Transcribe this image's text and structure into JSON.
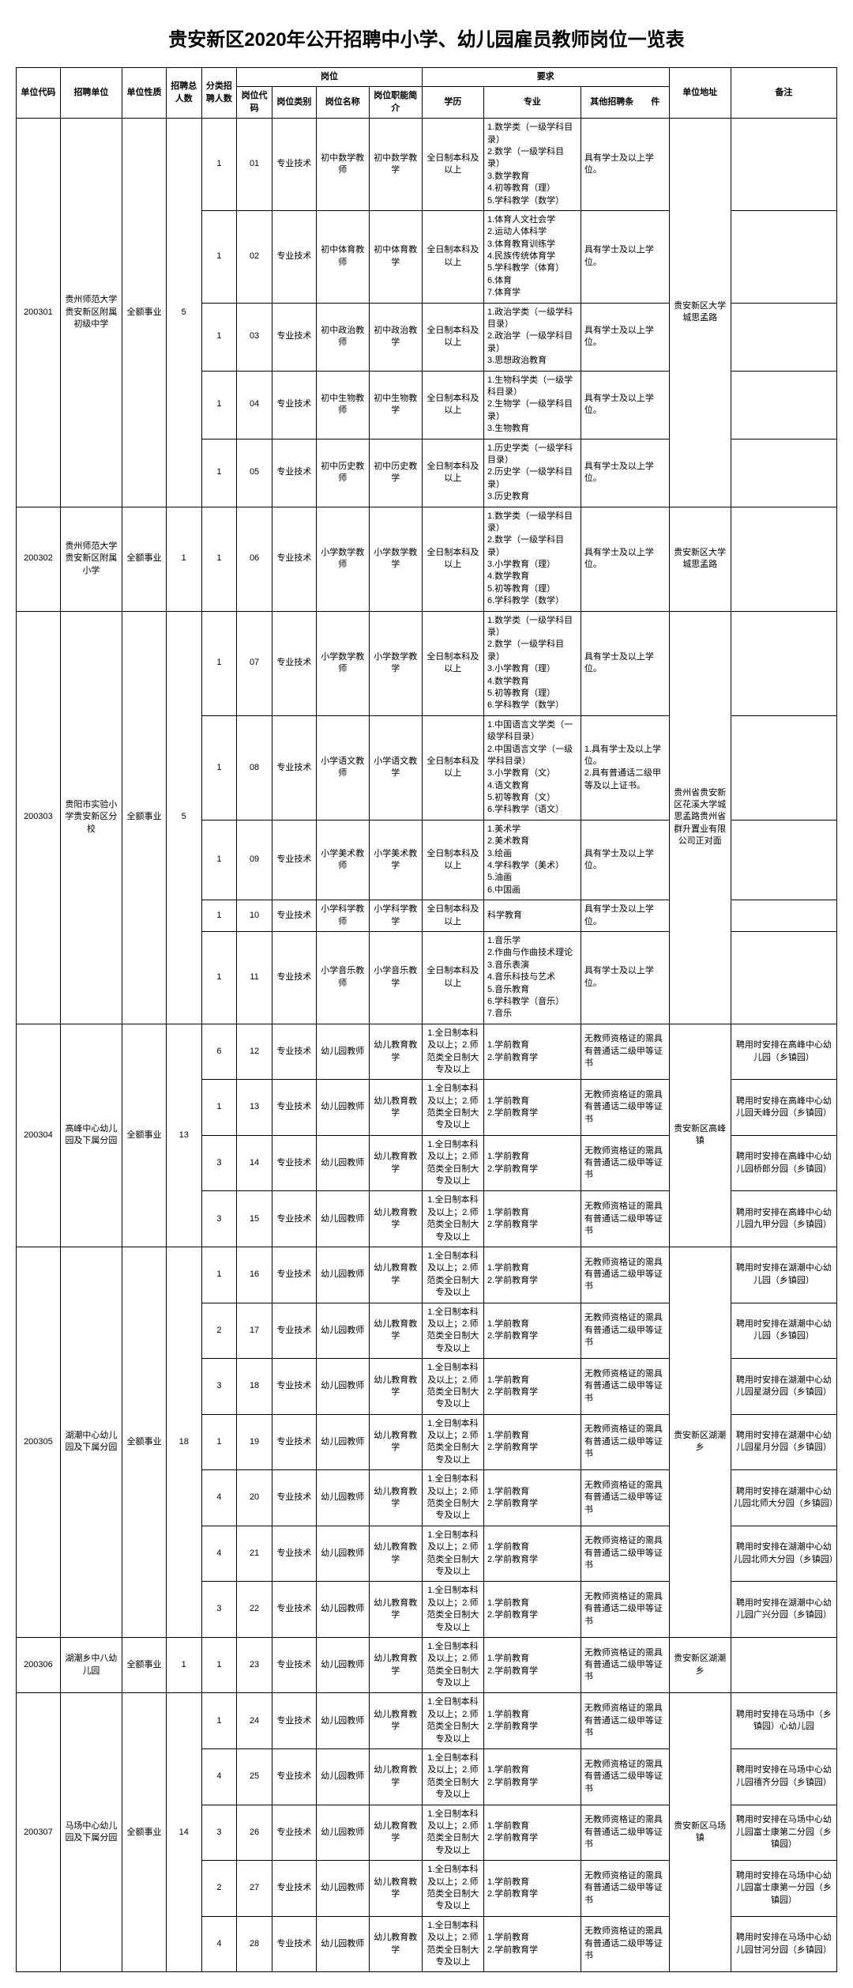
{
  "title": "贵安新区2020年公开招聘中小学、幼儿园雇员教师岗位一览表",
  "headers": {
    "unit_code": "单位代码",
    "unit": "招聘单位",
    "nature": "单位性质",
    "total": "招聘总人数",
    "subcount": "分类招聘人数",
    "position_group": "岗位",
    "pos_code": "岗位代码",
    "pos_type": "岗位类别",
    "pos_name": "岗位名称",
    "pos_desc": "岗位职能简介",
    "req_group": "要求",
    "edu": "学历",
    "major": "专业",
    "other": "其他招聘条　　件",
    "addr": "单位地址",
    "note": "备注"
  },
  "units": [
    {
      "code": "200301",
      "name": "贵州师范大学贵安新区附属初级中学",
      "nature": "全额事业",
      "total": "5",
      "addr": "贵安新区大学城思孟路",
      "rows": [
        {
          "n": "1",
          "pc": "01",
          "pt": "专业技术",
          "pn": "初中数学教师",
          "pd": "初中数学教学",
          "edu": "全日制本科及以上",
          "mj": "1.数学类（一级学科目录）\n2.数学（一级学科目录）\n3.数学教育\n4.初等教育（理）\n5.学科教学（数学）",
          "ot": "具有学士及以上学位。",
          "nt": ""
        },
        {
          "n": "1",
          "pc": "02",
          "pt": "专业技术",
          "pn": "初中体育教师",
          "pd": "初中体育教学",
          "edu": "全日制本科及以上",
          "mj": "1.体育人文社会学\n2.运动人体科学\n3.体育教育训练学\n4.民族传统体育学\n5.学科教学（体育）\n6.体育\n7.体育学",
          "ot": "具有学士及以上学位。",
          "nt": ""
        },
        {
          "n": "1",
          "pc": "03",
          "pt": "专业技术",
          "pn": "初中政治教师",
          "pd": "初中政治教学",
          "edu": "全日制本科及以上",
          "mj": "1.政治学类（一级学科目录）\n2.政治学（一级学科目录）\n3.思想政治教育",
          "ot": "具有学士及以上学位。",
          "nt": ""
        },
        {
          "n": "1",
          "pc": "04",
          "pt": "专业技术",
          "pn": "初中生物教师",
          "pd": "初中生物教学",
          "edu": "全日制本科及以上",
          "mj": "1.生物科学类（一级学科目录）\n2.生物学（一级学科目录）\n3.生物教育",
          "ot": "具有学士及以上学位。",
          "nt": ""
        },
        {
          "n": "1",
          "pc": "05",
          "pt": "专业技术",
          "pn": "初中历史教师",
          "pd": "初中历史教学",
          "edu": "全日制本科及以上",
          "mj": "1.历史学类（一级学科目录）\n2.历史学（一级学科目录）\n3.历史教育",
          "ot": "具有学士及以上学位。",
          "nt": ""
        }
      ]
    },
    {
      "code": "200302",
      "name": "贵州师范大学贵安新区附属小学",
      "nature": "全额事业",
      "total": "1",
      "addr": "贵安新区大学城思孟路",
      "rows": [
        {
          "n": "1",
          "pc": "06",
          "pt": "专业技术",
          "pn": "小学数学教师",
          "pd": "小学数学教学",
          "edu": "全日制本科及以上",
          "mj": "1.数学类（一级学科目录）\n2.数学（一级学科目录）\n3.小学教育（理）\n4.数学教育\n5.初等教育（理）\n6.学科教学（数学）",
          "ot": "具有学士及以上学位。",
          "nt": ""
        }
      ]
    },
    {
      "code": "200303",
      "name": "贵阳市实验小学贵安新区分校",
      "nature": "全额事业",
      "total": "5",
      "addr": "贵州省贵安新区花溪大学城思孟路贵州省群升置业有限公司正对面",
      "rows": [
        {
          "n": "1",
          "pc": "07",
          "pt": "专业技术",
          "pn": "小学数学教师",
          "pd": "小学数学教学",
          "edu": "全日制本科及以上",
          "mj": "1.数学类（一级学科目录）\n2.数学（一级学科目录）\n3.小学教育（理）\n4.数学教育\n5.初等教育（理）\n6.学科教学（数学）",
          "ot": "具有学士及以上学位。",
          "nt": ""
        },
        {
          "n": "1",
          "pc": "08",
          "pt": "专业技术",
          "pn": "小学语文教师",
          "pd": "小学语文教学",
          "edu": "全日制本科及以上",
          "mj": "1.中国语言文学类（一级学科目录）\n2.中国语言文学（一级学科目录）\n3.小学教育（文）\n4.语文教育\n5.初等教育（文）\n6.学科教学（语文）",
          "ot": "1.具有学士及以上学位。\n2.具有普通话二级甲等及以上证书。",
          "nt": ""
        },
        {
          "n": "1",
          "pc": "09",
          "pt": "专业技术",
          "pn": "小学美术教师",
          "pd": "小学美术教学",
          "edu": "全日制本科及以上",
          "mj": "1.美术学\n2.美术教育\n3.绘画\n4.学科教学（美术）\n5.油画\n6.中国画",
          "ot": "具有学士及以上学位。",
          "nt": ""
        },
        {
          "n": "1",
          "pc": "10",
          "pt": "专业技术",
          "pn": "小学科学教师",
          "pd": "小学科学教学",
          "edu": "全日制本科及以上",
          "mj": "科学教育",
          "ot": "具有学士及以上学位。",
          "nt": ""
        },
        {
          "n": "1",
          "pc": "11",
          "pt": "专业技术",
          "pn": "小学音乐教师",
          "pd": "小学音乐教学",
          "edu": "全日制本科及以上",
          "mj": "1.音乐学\n2.作曲与作曲技术理论\n3.音乐表演\n4.音乐科技与艺术\n5.音乐教育\n6.学科教学（音乐）\n7.音乐",
          "ot": "具有学士及以上学位。",
          "nt": ""
        }
      ]
    },
    {
      "code": "200304",
      "name": "高峰中心幼儿园及下属分园",
      "nature": "全额事业",
      "total": "13",
      "addr": "贵安新区高峰镇",
      "rows": [
        {
          "n": "6",
          "pc": "12",
          "pt": "专业技术",
          "pn": "幼儿园教师",
          "pd": "幼儿教育教学",
          "edu": "1.全日制本科及以上；2.师范类全日制大专及以上",
          "mj": "1.学前教育\n2.学前教育学",
          "ot": "无教师资格证的需具有普通话二级甲等证书",
          "nt": "聘用时安排在高峰中心幼儿园（乡镇园）"
        },
        {
          "n": "1",
          "pc": "13",
          "pt": "专业技术",
          "pn": "幼儿园教师",
          "pd": "幼儿教育教学",
          "edu": "1.全日制本科及以上；2.师范类全日制大专及以上",
          "mj": "1.学前教育\n2.学前教育学",
          "ot": "无教师资格证的需具有普通话二级甲等证书",
          "nt": "聘用时安排在高峰中心幼儿园天峰分园（乡镇园）"
        },
        {
          "n": "3",
          "pc": "14",
          "pt": "专业技术",
          "pn": "幼儿园教师",
          "pd": "幼儿教育教学",
          "edu": "1.全日制本科及以上；2.师范类全日制大专及以上",
          "mj": "1.学前教育\n2.学前教育学",
          "ot": "无教师资格证的需具有普通话二级甲等证书",
          "nt": "聘用时安排在高峰中心幼儿园桥郎分园（乡镇园）"
        },
        {
          "n": "3",
          "pc": "15",
          "pt": "专业技术",
          "pn": "幼儿园教师",
          "pd": "幼儿教育教学",
          "edu": "1.全日制本科及以上；2.师范类全日制大专及以上",
          "mj": "1.学前教育\n2.学前教育学",
          "ot": "无教师资格证的需具有普通话二级甲等证书",
          "nt": "聘用时安排在高峰中心幼儿园九甲分园（乡镇园）"
        }
      ]
    },
    {
      "code": "200305",
      "name": "湖潮中心幼儿园及下属分园",
      "nature": "全额事业",
      "total": "18",
      "addr": "贵安新区湖潮乡",
      "rows": [
        {
          "n": "1",
          "pc": "16",
          "pt": "专业技术",
          "pn": "幼儿园教师",
          "pd": "幼儿教育教学",
          "edu": "1.全日制本科及以上；2.师范类全日制大专及以上",
          "mj": "1.学前教育\n2.学前教育学",
          "ot": "无教师资格证的需具有普通话二级甲等证书",
          "nt": "聘用时安排在湖潮中心幼儿园（乡镇园）"
        },
        {
          "n": "2",
          "pc": "17",
          "pt": "专业技术",
          "pn": "幼儿园教师",
          "pd": "幼儿教育教学",
          "edu": "1.全日制本科及以上；2.师范类全日制大专及以上",
          "mj": "1.学前教育\n2.学前教育学",
          "ot": "无教师资格证的需具有普通话二级甲等证书",
          "nt": "聘用时安排在湖潮中心幼儿园（乡镇园）"
        },
        {
          "n": "3",
          "pc": "18",
          "pt": "专业技术",
          "pn": "幼儿园教师",
          "pd": "幼儿教育教学",
          "edu": "1.全日制本科及以上；2.师范类全日制大专及以上",
          "mj": "1.学前教育\n2.学前教育学",
          "ot": "无教师资格证的需具有普通话二级甲等证书",
          "nt": "聘用时安排在湖潮中心幼儿园星湖分园（乡镇园）"
        },
        {
          "n": "1",
          "pc": "19",
          "pt": "专业技术",
          "pn": "幼儿园教师",
          "pd": "幼儿教育教学",
          "edu": "1.全日制本科及以上；2.师范类全日制大专及以上",
          "mj": "1.学前教育\n2.学前教育学",
          "ot": "无教师资格证的需具有普通话二级甲等证书",
          "nt": "聘用时安排在湖潮中心幼儿园星月分园（乡镇园）"
        },
        {
          "n": "4",
          "pc": "20",
          "pt": "专业技术",
          "pn": "幼儿园教师",
          "pd": "幼儿教育教学",
          "edu": "1.全日制本科及以上；2.师范类全日制大专及以上",
          "mj": "1.学前教育\n2.学前教育学",
          "ot": "无教师资格证的需具有普通话二级甲等证书",
          "nt": "聘用时安排在湖潮中心幼儿园北师大分园（乡镇园）"
        },
        {
          "n": "4",
          "pc": "21",
          "pt": "专业技术",
          "pn": "幼儿园教师",
          "pd": "幼儿教育教学",
          "edu": "1.全日制本科及以上；2.师范类全日制大专及以上",
          "mj": "1.学前教育\n2.学前教育学",
          "ot": "无教师资格证的需具有普通话二级甲等证书",
          "nt": "聘用时安排在湖潮中心幼儿园北师大分园（乡镇园）"
        },
        {
          "n": "3",
          "pc": "22",
          "pt": "专业技术",
          "pn": "幼儿园教师",
          "pd": "幼儿教育教学",
          "edu": "1.全日制本科及以上；2.师范类全日制大专及以上",
          "mj": "1.学前教育\n2.学前教育学",
          "ot": "无教师资格证的需具有普通话二级甲等证书",
          "nt": "聘用时安排在湖潮中心幼儿园广兴分园（乡镇园）"
        }
      ]
    },
    {
      "code": "200306",
      "name": "湖潮乡中八幼儿园",
      "nature": "全额事业",
      "total": "1",
      "addr": "贵安新区湖潮乡",
      "rows": [
        {
          "n": "1",
          "pc": "23",
          "pt": "专业技术",
          "pn": "幼儿园教师",
          "pd": "幼儿教育教学",
          "edu": "1.全日制本科及以上；2.师范类全日制大专及以上",
          "mj": "1.学前教育\n2.学前教育学",
          "ot": "无教师资格证的需具有普通话二级甲等证书",
          "nt": ""
        }
      ]
    },
    {
      "code": "200307",
      "name": "马场中心幼儿园及下属分园",
      "nature": "全额事业",
      "total": "14",
      "addr": "贵安新区马场镇",
      "rows": [
        {
          "n": "1",
          "pc": "24",
          "pt": "专业技术",
          "pn": "幼儿园教师",
          "pd": "幼儿教育教学",
          "edu": "1.全日制本科及以上；2.师范类全日制大专及以上",
          "mj": "1.学前教育\n2.学前教育学",
          "ot": "无教师资格证的需具有普通话二级甲等证书",
          "nt": "聘用时安排在马场中（乡镇园）心幼儿园"
        },
        {
          "n": "4",
          "pc": "25",
          "pt": "专业技术",
          "pn": "幼儿园教师",
          "pd": "幼儿教育教学",
          "edu": "1.全日制本科及以上；2.师范类全日制大专及以上",
          "mj": "1.学前教育\n2.学前教育学",
          "ot": "无教师资格证的需具有普通话二级甲等证书",
          "nt": "聘用时安排在马场中心幼儿园禧齐分园（乡镇园）"
        },
        {
          "n": "3",
          "pc": "26",
          "pt": "专业技术",
          "pn": "幼儿园教师",
          "pd": "幼儿教育教学",
          "edu": "1.全日制本科及以上；2.师范类全日制大专及以上",
          "mj": "1.学前教育\n2.学前教育学",
          "ot": "无教师资格证的需具有普通话二级甲等证书",
          "nt": "聘用时安排在马场中心幼儿园富士康第二分园（乡镇园）"
        },
        {
          "n": "2",
          "pc": "27",
          "pt": "专业技术",
          "pn": "幼儿园教师",
          "pd": "幼儿教育教学",
          "edu": "1.全日制本科及以上；2.师范类全日制大专及以上",
          "mj": "1.学前教育\n2.学前教育学",
          "ot": "无教师资格证的需具有普通话二级甲等证书",
          "nt": "聘用时安排在马场中心幼儿园富士康第一分园（乡镇园）"
        },
        {
          "n": "4",
          "pc": "28",
          "pt": "专业技术",
          "pn": "幼儿园教师",
          "pd": "幼儿教育教学",
          "edu": "1.全日制本科及以上；2.师范类全日制大专及以上",
          "mj": "1.学前教育\n2.学前教育学",
          "ot": "无教师资格证的需具有普通话二级甲等证书",
          "nt": "聘用时安排在马场中心幼儿园甘河分园（乡镇园）"
        }
      ]
    }
  ]
}
